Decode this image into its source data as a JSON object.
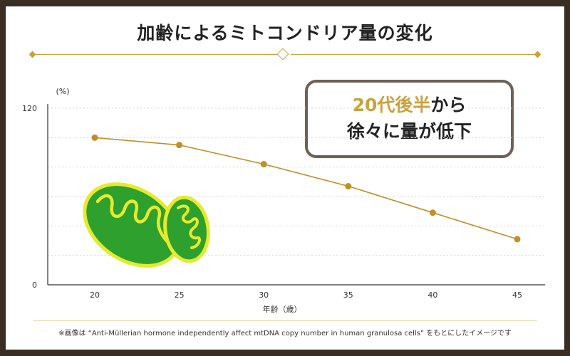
{
  "title": "加齢によるミトコンドリア量の変化",
  "callout": {
    "highlight": "20代後半",
    "line1_rest": "から",
    "line2": "徐々に量が低下"
  },
  "footnote": "※画像は “Anti-Müllerian hormone independently affect mtDNA copy number in human granulosa cells” をもとにしたイメージです",
  "colors": {
    "accent": "#c9a23a",
    "line": "#c09027",
    "mitochondria_fill": "#2da02d",
    "mitochondria_stroke": "#e6ea2e",
    "callout_border": "#6e6155",
    "frame": "#3a2d22"
  },
  "chart_data": {
    "type": "line",
    "unit_label": "(%)",
    "xlabel": "年齢（歳）",
    "ylabel": "",
    "x": [
      20,
      25,
      30,
      35,
      40,
      45
    ],
    "x_ticks": [
      "20",
      "25",
      "30",
      "35",
      "40",
      "45"
    ],
    "y_ticks": [
      "0",
      "120"
    ],
    "ylim": [
      0,
      120
    ],
    "series": [
      {
        "values": [
          100,
          95,
          82,
          67,
          49,
          31
        ]
      }
    ],
    "grid": "horizontal dashed"
  }
}
